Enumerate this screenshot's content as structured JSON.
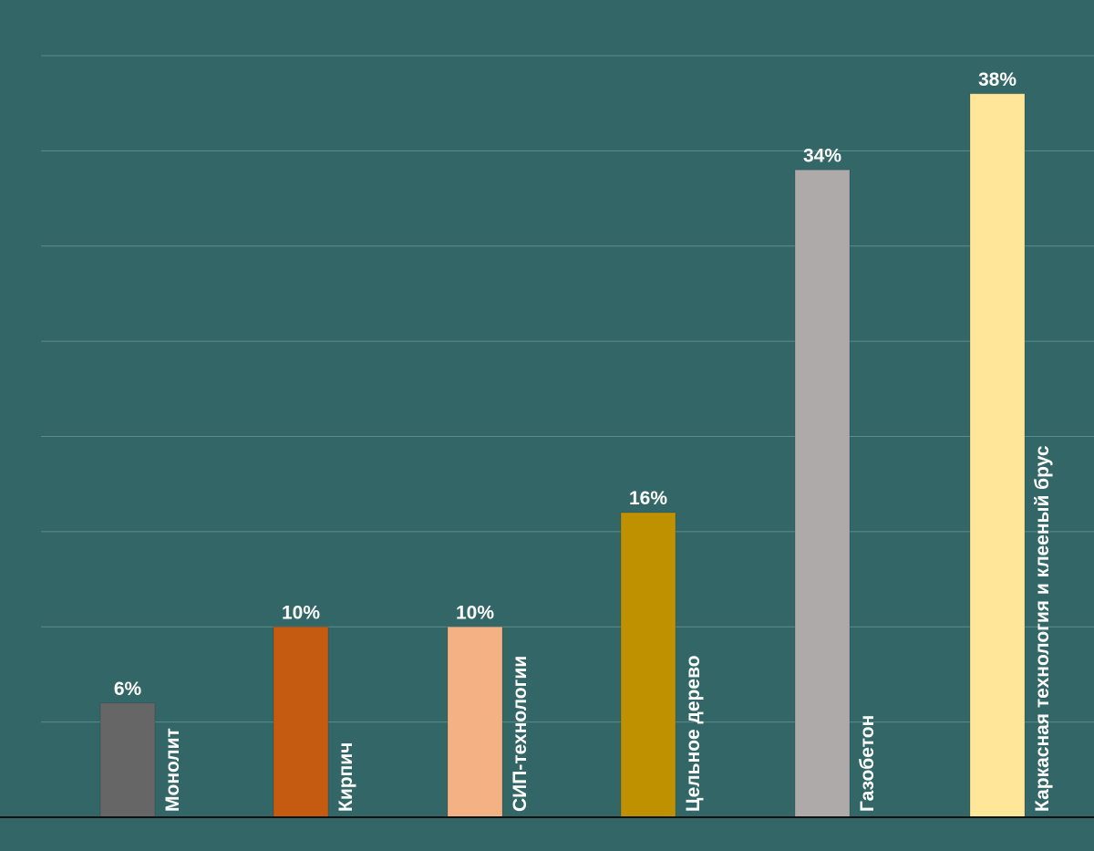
{
  "chart_data": {
    "type": "bar",
    "categories": [
      "Монолит",
      "Кирпич",
      "СИП-технологии",
      "Цельное дерево",
      "Газобетон",
      "Каркасная технология и клееный брус"
    ],
    "values": [
      6,
      10,
      10,
      16,
      34,
      38
    ],
    "value_labels": [
      "6%",
      "10%",
      "10%",
      "16%",
      "34%",
      "38%"
    ],
    "colors": [
      "#666666",
      "#c55a11",
      "#f4b183",
      "#bf9000",
      "#aeaaaa",
      "#ffe699"
    ],
    "ylim": [
      0,
      40
    ],
    "grid": true,
    "legend": "none"
  }
}
